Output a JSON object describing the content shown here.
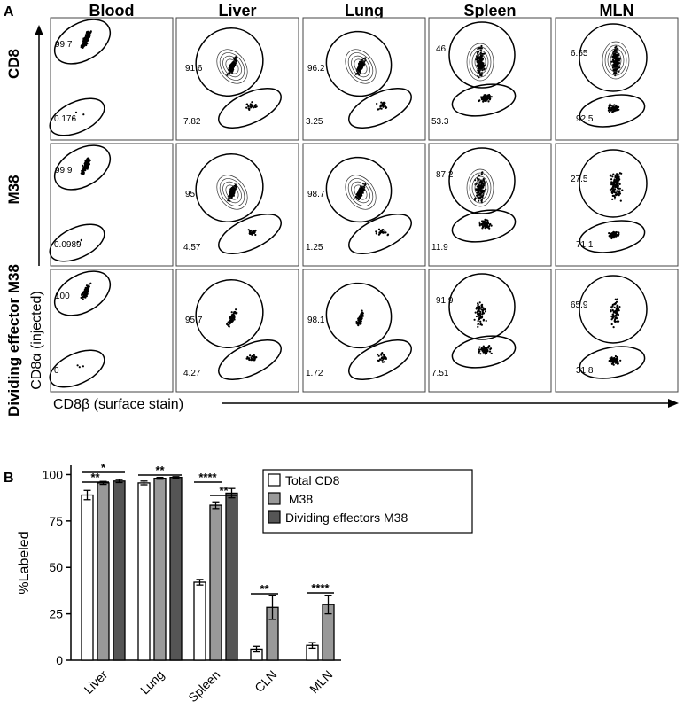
{
  "panel_a": {
    "letter": "A",
    "columns": [
      "Blood",
      "Liver",
      "Lung",
      "Spleen",
      "MLN"
    ],
    "rows": [
      "CD8",
      "M38",
      "Dividing effector M38"
    ],
    "y_axis_label": "CD8α (injected)",
    "x_axis_label": "CD8β (surface stain)",
    "gates": [
      [
        [
          "99.7",
          "0.176"
        ],
        [
          "91.6",
          "7.82"
        ],
        [
          "96.2",
          "3.25"
        ],
        [
          "46",
          "53.3"
        ],
        [
          "6.65",
          "92.5"
        ]
      ],
      [
        [
          "99.9",
          "0.0989"
        ],
        [
          "95",
          "4.57"
        ],
        [
          "98.7",
          "1.25"
        ],
        [
          "87.2",
          "11.9"
        ],
        [
          "27.5",
          "71.1"
        ]
      ],
      [
        [
          "100",
          "0"
        ],
        [
          "95.7",
          "4.27"
        ],
        [
          "98.1",
          "1.72"
        ],
        [
          "91.9",
          "7.51"
        ],
        [
          "65.9",
          "31.8"
        ]
      ]
    ]
  },
  "panel_b": {
    "letter": "B"
  },
  "chart_data": [
    {
      "type": "bar",
      "panel": "B",
      "categories": [
        "Liver",
        "Lung",
        "Spleen",
        "CLN",
        "MLN"
      ],
      "ylabel": "%Labeled",
      "xlabel": "",
      "ylim": [
        0,
        105
      ],
      "yticks": [
        0,
        25,
        50,
        75,
        100
      ],
      "legend_position": "top-right",
      "series": [
        {
          "name": "Total CD8",
          "values": [
            89,
            95.5,
            42,
            6,
            8
          ],
          "errors": [
            2.5,
            1,
            1.5,
            1.5,
            1.5
          ],
          "color": "#ffffff"
        },
        {
          "name": " M38",
          "values": [
            95.5,
            98,
            83.5,
            28.5,
            30
          ],
          "errors": [
            0.8,
            0.5,
            1.8,
            6.5,
            5
          ],
          "color": "#999999"
        },
        {
          "name": "Dividing effectors M38",
          "values": [
            96.5,
            98.5,
            90,
            null,
            null
          ],
          "errors": [
            0.8,
            0.4,
            2.5,
            null,
            null
          ],
          "color": "#555555"
        }
      ],
      "significance": [
        {
          "category": "Liver",
          "label": "**"
        },
        {
          "category": "Liver",
          "label": "*"
        },
        {
          "category": "Lung",
          "label": "**"
        },
        {
          "category": "Spleen",
          "label": "****"
        },
        {
          "category": "Spleen",
          "label": "**"
        },
        {
          "category": "CLN",
          "label": "**"
        },
        {
          "category": "MLN",
          "label": "****"
        }
      ]
    }
  ]
}
